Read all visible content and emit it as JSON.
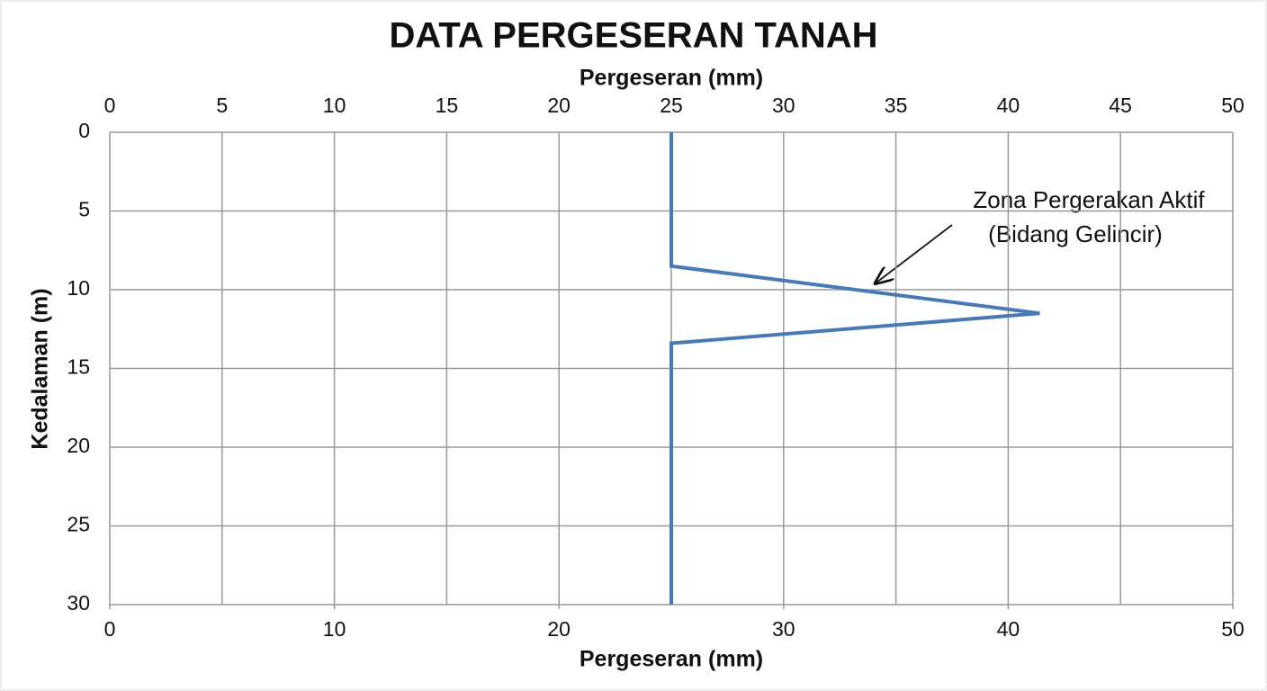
{
  "chart_data": {
    "type": "line",
    "title": "DATA PERGESERAN TANAH",
    "xlabel": "Pergeseran (mm)",
    "x2label": "Pergeseran (mm)",
    "ylabel": "Kedalaman (m)",
    "x": [
      25,
      25,
      41.4,
      25,
      25
    ],
    "values": [
      0,
      8.5,
      11.5,
      13.4,
      30
    ],
    "color": "#4a7ab5",
    "xlim": [
      0,
      50
    ],
    "xticks": [
      0,
      10,
      20,
      30,
      40,
      50
    ],
    "x2lim": [
      0,
      50
    ],
    "x2ticks": [
      0,
      5,
      10,
      15,
      20,
      25,
      30,
      35,
      40,
      45,
      50
    ],
    "ylim": [
      0,
      30
    ],
    "yticks": [
      0,
      5,
      10,
      15,
      20,
      25,
      30
    ],
    "y_inverted": true,
    "grid": true,
    "annotation": {
      "lines": [
        "Zona Pergerakan Aktif",
        "(Bidang Gelincir)"
      ]
    }
  }
}
